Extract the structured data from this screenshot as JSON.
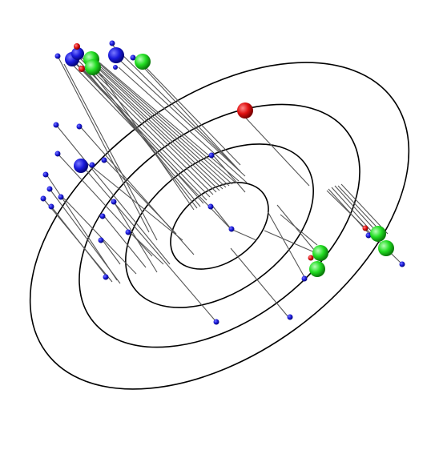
{
  "colors": {
    "background": "#ffffff",
    "ring": "#000000",
    "stem": "#555555",
    "blue": "#1a1adc",
    "green": "#22dd22",
    "red": "#e01010"
  },
  "rings_count": 4
}
